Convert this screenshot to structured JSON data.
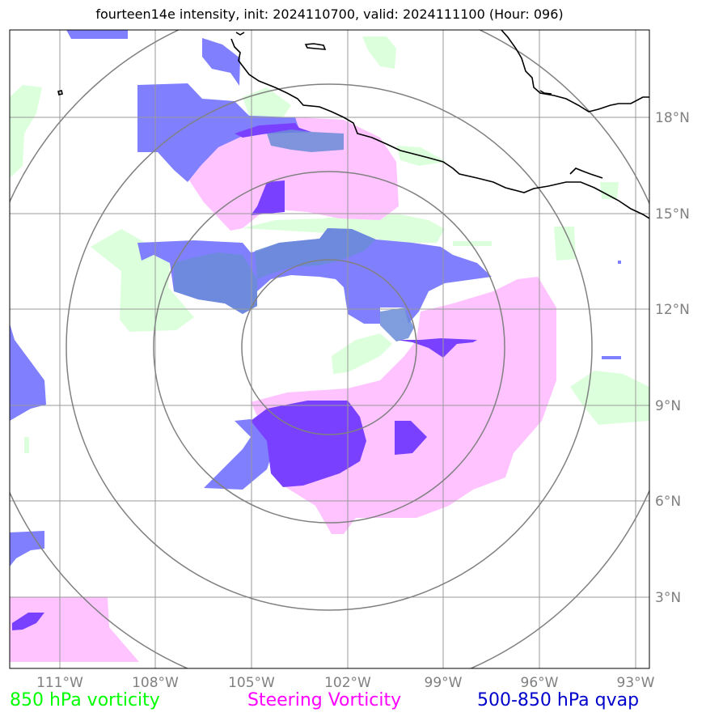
{
  "title": "fourteen14e intensity, init: 2024110700, valid: 2024111100 (Hour: 096)",
  "lon_labels": [
    "111°W",
    "108°W",
    "105°W",
    "102°W",
    "99°W",
    "96°W",
    "93°W"
  ],
  "lat_labels": [
    "18°N",
    "15°N",
    "12°N",
    "9°N",
    "6°N",
    "3°N"
  ],
  "legend": {
    "vort850": {
      "label": "850 hPa vorticity",
      "color": "#00ff00"
    },
    "steering": {
      "label": "Steering Vorticity",
      "color": "#ff00ff"
    },
    "qvap": {
      "label": "500-850 hPa qvap",
      "color": "#0000cc"
    }
  },
  "map": {
    "lon_range": [
      -112.5,
      -92.5
    ],
    "lat_range": [
      1.2,
      20.2
    ],
    "storm_center": {
      "lon": -102.6,
      "lat": 10.9
    },
    "range_rings_deg": [
      2.7,
      5.5,
      8.2,
      11.0
    ],
    "colors": {
      "vort850_fill": "#dcffdc",
      "steering_fill": "#ffc4ff",
      "qvap_fill": "#8080ff",
      "overlap_fill": "#7a40ff",
      "coast": "#000000",
      "grid": "#999999",
      "ring": "#808080"
    }
  }
}
